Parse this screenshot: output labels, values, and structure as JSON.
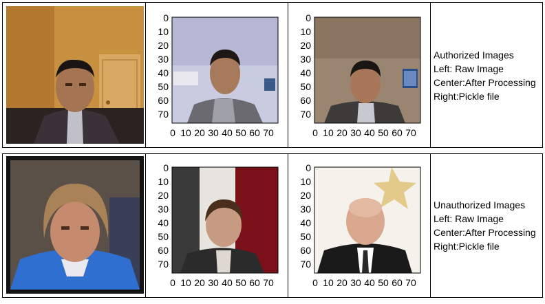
{
  "rows": [
    {
      "caption": {
        "title": "Authorized Images",
        "left": "Left: Raw Image",
        "center": "Center:After Processing",
        "right": "Right:Pickle file"
      }
    },
    {
      "caption": {
        "title": "Unauthorized Images",
        "left": "Left: Raw Image",
        "center": "Center:After Processing",
        "right": "Right:Pickle file"
      }
    }
  ],
  "axis": {
    "y_ticks": [
      "0",
      "10",
      "20",
      "30",
      "40",
      "50",
      "60",
      "70"
    ],
    "x_ticks": [
      "0",
      "10",
      "20",
      "30",
      "40",
      "50",
      "60",
      "70"
    ],
    "range": [
      0,
      78
    ]
  },
  "colors": {
    "border": "#000000",
    "auth_wall": "#c8913f",
    "unauth_jersey": "#2f6fcf",
    "suit": "#222222"
  }
}
